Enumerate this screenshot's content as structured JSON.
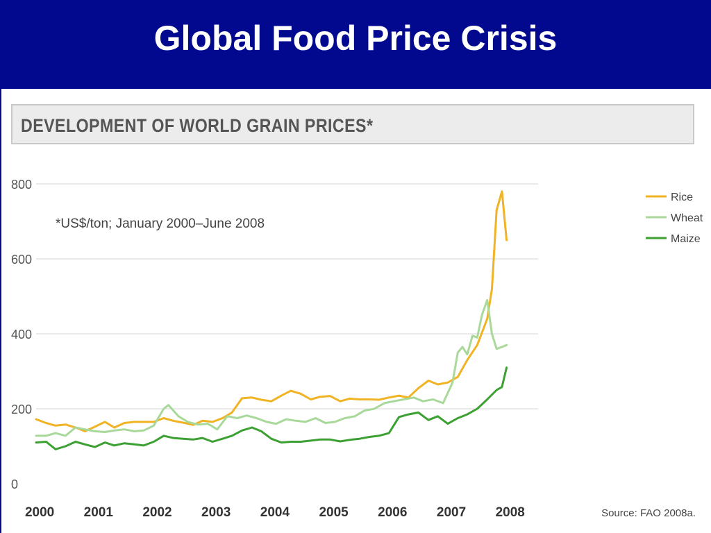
{
  "slide": {
    "title": "Global Food Price Crisis",
    "header_color": "#03098f"
  },
  "chart_data": {
    "type": "line",
    "title": "DEVELOPMENT OF WORLD GRAIN PRICES*",
    "note": "*US$/ton; January 2000–June 2008",
    "source": "Source: FAO 2008a.",
    "xlabel": "",
    "ylabel": "",
    "ylim": [
      0,
      800
    ],
    "yticks": [
      0,
      200,
      400,
      600,
      800
    ],
    "xlim": [
      2000,
      2008.5
    ],
    "xticks": [
      "2000",
      "2001",
      "2002",
      "2003",
      "2004",
      "2005",
      "2006",
      "2007",
      "2008"
    ],
    "grid": "horizontal",
    "legend": "top-right",
    "series": [
      {
        "name": "Rice",
        "color": "#f0b323",
        "x": [
          2000,
          2000.17,
          2000.33,
          2000.5,
          2000.67,
          2000.83,
          2001,
          2001.17,
          2001.33,
          2001.5,
          2001.67,
          2001.83,
          2002,
          2002.17,
          2002.33,
          2002.5,
          2002.67,
          2002.83,
          2003,
          2003.17,
          2003.33,
          2003.5,
          2003.67,
          2003.83,
          2004,
          2004.17,
          2004.33,
          2004.5,
          2004.67,
          2004.83,
          2005,
          2005.17,
          2005.33,
          2005.5,
          2005.67,
          2005.83,
          2006,
          2006.17,
          2006.33,
          2006.5,
          2006.67,
          2006.83,
          2007,
          2007.17,
          2007.33,
          2007.5,
          2007.67,
          2007.75,
          2007.83,
          2007.92,
          2008
        ],
        "y": [
          172,
          162,
          155,
          158,
          150,
          140,
          152,
          165,
          150,
          162,
          165,
          165,
          165,
          175,
          168,
          163,
          157,
          168,
          165,
          175,
          190,
          228,
          230,
          224,
          220,
          235,
          248,
          240,
          225,
          232,
          234,
          220,
          227,
          225,
          225,
          224,
          230,
          235,
          230,
          255,
          275,
          265,
          270,
          285,
          330,
          370,
          440,
          520,
          730,
          780,
          650
        ]
      },
      {
        "name": "Wheat",
        "color": "#a9d99a",
        "x": [
          2000,
          2000.17,
          2000.33,
          2000.5,
          2000.67,
          2000.83,
          2001,
          2001.17,
          2001.33,
          2001.5,
          2001.67,
          2001.83,
          2002,
          2002.17,
          2002.25,
          2002.42,
          2002.58,
          2002.75,
          2002.92,
          2003.08,
          2003.25,
          2003.42,
          2003.58,
          2003.75,
          2003.92,
          2004.08,
          2004.25,
          2004.42,
          2004.58,
          2004.75,
          2004.92,
          2005.08,
          2005.25,
          2005.42,
          2005.58,
          2005.75,
          2005.92,
          2006.08,
          2006.25,
          2006.42,
          2006.58,
          2006.75,
          2006.92,
          2007.08,
          2007.17,
          2007.25,
          2007.33,
          2007.42,
          2007.5,
          2007.58,
          2007.67,
          2007.75,
          2007.83,
          2007.92,
          2008
        ],
        "y": [
          128,
          128,
          135,
          128,
          150,
          145,
          140,
          138,
          142,
          145,
          140,
          142,
          155,
          200,
          210,
          180,
          165,
          158,
          160,
          145,
          180,
          175,
          182,
          175,
          165,
          160,
          172,
          168,
          165,
          175,
          162,
          165,
          175,
          180,
          195,
          200,
          215,
          220,
          225,
          230,
          220,
          225,
          215,
          270,
          350,
          365,
          345,
          395,
          390,
          450,
          490,
          400,
          360,
          365,
          370
        ]
      },
      {
        "name": "Maize",
        "color": "#3ca032",
        "x": [
          2000,
          2000.17,
          2000.33,
          2000.5,
          2000.67,
          2000.83,
          2001,
          2001.17,
          2001.33,
          2001.5,
          2001.67,
          2001.83,
          2002,
          2002.17,
          2002.33,
          2002.5,
          2002.67,
          2002.83,
          2003,
          2003.17,
          2003.33,
          2003.5,
          2003.67,
          2003.83,
          2004,
          2004.17,
          2004.33,
          2004.5,
          2004.67,
          2004.83,
          2005,
          2005.17,
          2005.33,
          2005.5,
          2005.67,
          2005.83,
          2006,
          2006.17,
          2006.33,
          2006.5,
          2006.67,
          2006.83,
          2007,
          2007.17,
          2007.33,
          2007.5,
          2007.67,
          2007.83,
          2007.92,
          2008
        ],
        "y": [
          110,
          112,
          92,
          100,
          112,
          105,
          98,
          110,
          102,
          108,
          105,
          102,
          112,
          128,
          122,
          120,
          118,
          122,
          112,
          120,
          128,
          142,
          150,
          140,
          120,
          110,
          112,
          112,
          115,
          118,
          118,
          113,
          117,
          120,
          125,
          128,
          135,
          178,
          185,
          190,
          170,
          180,
          160,
          175,
          185,
          200,
          225,
          250,
          258,
          310
        ]
      }
    ]
  }
}
